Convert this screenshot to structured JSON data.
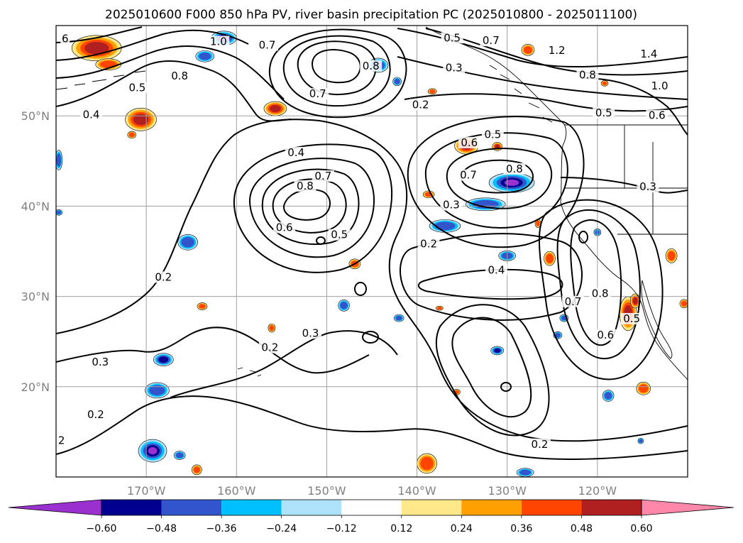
{
  "title": "2025010600 F000 850 hPa PV, river basin precipitation PC (2025010800 - 2025011100)",
  "map": {
    "lon_range": [
      -180,
      -110
    ],
    "lat_range": [
      10,
      60
    ],
    "lon_ticks": [
      -170,
      -160,
      -150,
      -140,
      -130,
      -120
    ],
    "lon_labels": [
      "170°W",
      "160°W",
      "150°W",
      "140°W",
      "130°W",
      "120°W"
    ],
    "lat_ticks": [
      20,
      30,
      40,
      50
    ],
    "lat_labels": [
      "20°N",
      "30°N",
      "40°N",
      "50°N"
    ],
    "grid": true
  },
  "colorbar": {
    "ticks": [
      "−0.60",
      "−0.48",
      "−0.36",
      "−0.24",
      "−0.12",
      "0.12",
      "0.24",
      "0.36",
      "0.48",
      "0.60"
    ],
    "colors": [
      "#9b30d0",
      "#000090",
      "#3355cc",
      "#00bfff",
      "#aee2fb",
      "#ffffff",
      "#ffe88a",
      "#ffa000",
      "#ff4500",
      "#b02020",
      "#ff88aa"
    ],
    "extend": "both"
  },
  "contour_labels": [
    {
      "text": "6",
      "lon": -179,
      "lat": 58.3
    },
    {
      "text": "1.0",
      "lon": -162,
      "lat": 58
    },
    {
      "text": "0.7",
      "lon": -156.6,
      "lat": 57.6
    },
    {
      "text": "0.8",
      "lon": -166.3,
      "lat": 54.2
    },
    {
      "text": "0.5",
      "lon": -171,
      "lat": 52.9
    },
    {
      "text": "0.4",
      "lon": -176.1,
      "lat": 49.9
    },
    {
      "text": "0.7",
      "lon": -151,
      "lat": 52.2
    },
    {
      "text": "0.8",
      "lon": -145.1,
      "lat": 55.3
    },
    {
      "text": "0.5",
      "lon": -136.1,
      "lat": 58.4
    },
    {
      "text": "0.7",
      "lon": -131.8,
      "lat": 58.1
    },
    {
      "text": "0.3",
      "lon": -135.9,
      "lat": 55.1
    },
    {
      "text": "0.2",
      "lon": -139.6,
      "lat": 51
    },
    {
      "text": "1.2",
      "lon": -124.5,
      "lat": 57
    },
    {
      "text": "1.4",
      "lon": -114.3,
      "lat": 56.6
    },
    {
      "text": "0.8",
      "lon": -121.1,
      "lat": 54.3
    },
    {
      "text": "1.0",
      "lon": -113.1,
      "lat": 53.1
    },
    {
      "text": "0.5",
      "lon": -119.3,
      "lat": 50.1
    },
    {
      "text": "0.6",
      "lon": -113.4,
      "lat": 49.8
    },
    {
      "text": "0.5",
      "lon": -131.6,
      "lat": 47.7
    },
    {
      "text": "0.6",
      "lon": -134.2,
      "lat": 46.8
    },
    {
      "text": "0.7",
      "lon": -134.3,
      "lat": 43.2
    },
    {
      "text": "0.8",
      "lon": -129.2,
      "lat": 43.9
    },
    {
      "text": "0.4",
      "lon": -153.4,
      "lat": 45.7
    },
    {
      "text": "0.7",
      "lon": -150.4,
      "lat": 43.1
    },
    {
      "text": "0.8",
      "lon": -152.4,
      "lat": 42
    },
    {
      "text": "0.3",
      "lon": -114.4,
      "lat": 41.9
    },
    {
      "text": "0.3",
      "lon": -136.2,
      "lat": 39.9
    },
    {
      "text": "0.6",
      "lon": -154.7,
      "lat": 37.4
    },
    {
      "text": "0.5",
      "lon": -148.6,
      "lat": 36.6
    },
    {
      "text": "0.2",
      "lon": -138.7,
      "lat": 35.6
    },
    {
      "text": "0.4",
      "lon": -131.2,
      "lat": 32.7
    },
    {
      "text": "0.2",
      "lon": -168.1,
      "lat": 31.9
    },
    {
      "text": "0.7",
      "lon": -122.7,
      "lat": 29.2
    },
    {
      "text": "0.8",
      "lon": -119.7,
      "lat": 30.1
    },
    {
      "text": "0.5",
      "lon": -116.2,
      "lat": 27.3
    },
    {
      "text": "0.6",
      "lon": -119.1,
      "lat": 25.5
    },
    {
      "text": "0.3",
      "lon": -151.8,
      "lat": 25.7
    },
    {
      "text": "0.2",
      "lon": -156.3,
      "lat": 24.1
    },
    {
      "text": "0.3",
      "lon": -175.1,
      "lat": 22.5
    },
    {
      "text": "0.2",
      "lon": -175.6,
      "lat": 16.7
    },
    {
      "text": "2",
      "lon": -179.4,
      "lat": 13.8
    },
    {
      "text": "0.2",
      "lon": -126.4,
      "lat": 13.4
    }
  ],
  "precip_blobs": [
    {
      "lon": -175.5,
      "lat": 57.5,
      "rx": 35,
      "ry": 18,
      "value": 0.5
    },
    {
      "lon": -174.2,
      "lat": 55.7,
      "rx": 18,
      "ry": 8,
      "value": 0.36
    },
    {
      "lon": -170.6,
      "lat": 49.6,
      "rx": 22,
      "ry": 16,
      "value": 0.5
    },
    {
      "lon": -171.6,
      "lat": 47.9,
      "rx": 6,
      "ry": 5,
      "value": 0.36
    },
    {
      "lon": -161.4,
      "lat": 58.6,
      "rx": 18,
      "ry": 10,
      "value": -0.6
    },
    {
      "lon": -163.5,
      "lat": 56.6,
      "rx": 13,
      "ry": 8,
      "value": -0.36
    },
    {
      "lon": -155.7,
      "lat": 50.8,
      "rx": 16,
      "ry": 10,
      "value": 0.5
    },
    {
      "lon": -144.3,
      "lat": 55.6,
      "rx": 14,
      "ry": 10,
      "value": -0.36
    },
    {
      "lon": -142.2,
      "lat": 53.8,
      "rx": 6,
      "ry": 6,
      "value": -0.36
    },
    {
      "lon": -138.3,
      "lat": 52.7,
      "rx": 6,
      "ry": 4,
      "value": 0.36
    },
    {
      "lon": -134.5,
      "lat": 46.7,
      "rx": 17,
      "ry": 12,
      "value": 0.5
    },
    {
      "lon": -131.1,
      "lat": 46.6,
      "rx": 7,
      "ry": 6,
      "value": 0.5
    },
    {
      "lon": -129.5,
      "lat": 42.6,
      "rx": 32,
      "ry": 14,
      "value": -0.6
    },
    {
      "lon": -132.4,
      "lat": 40.2,
      "rx": 28,
      "ry": 9,
      "value": -0.36
    },
    {
      "lon": -136.9,
      "lat": 37.8,
      "rx": 22,
      "ry": 9,
      "value": -0.36
    },
    {
      "lon": -138.7,
      "lat": 41.3,
      "rx": 8,
      "ry": 5,
      "value": 0.36
    },
    {
      "lon": -127.7,
      "lat": 57.3,
      "rx": 9,
      "ry": 8,
      "value": 0.36
    },
    {
      "lon": -119.2,
      "lat": 53.6,
      "rx": 5,
      "ry": 4,
      "value": 0.36
    },
    {
      "lon": -126.6,
      "lat": 38.1,
      "rx": 4,
      "ry": 6,
      "value": 0.36
    },
    {
      "lon": -125.3,
      "lat": 34.2,
      "rx": 8,
      "ry": 10,
      "value": 0.36
    },
    {
      "lon": -130,
      "lat": 34.5,
      "rx": 12,
      "ry": 7,
      "value": -0.36
    },
    {
      "lon": -123.7,
      "lat": 27.6,
      "rx": 6,
      "ry": 5,
      "value": -0.36
    },
    {
      "lon": -120,
      "lat": 37.1,
      "rx": 5,
      "ry": 5,
      "value": -0.36
    },
    {
      "lon": -116.6,
      "lat": 28.1,
      "rx": 12,
      "ry": 24,
      "value": 0.5
    },
    {
      "lon": -115.8,
      "lat": 29.5,
      "rx": 7,
      "ry": 10,
      "value": 0.5
    },
    {
      "lon": -111.8,
      "lat": 34.5,
      "rx": 8,
      "ry": 10,
      "value": 0.36
    },
    {
      "lon": -110.4,
      "lat": 29.2,
      "rx": 6,
      "ry": 6,
      "value": 0.36
    },
    {
      "lon": -114.9,
      "lat": 19.8,
      "rx": 10,
      "ry": 9,
      "value": 0.36
    },
    {
      "lon": -118.8,
      "lat": 19,
      "rx": 8,
      "ry": 8,
      "value": -0.36
    },
    {
      "lon": -115.2,
      "lat": 14,
      "rx": 4,
      "ry": 4,
      "value": -0.36
    },
    {
      "lon": -165.4,
      "lat": 36,
      "rx": 14,
      "ry": 11,
      "value": -0.36
    },
    {
      "lon": -168.1,
      "lat": 23,
      "rx": 14,
      "ry": 9,
      "value": -0.48
    },
    {
      "lon": -168.8,
      "lat": 19.6,
      "rx": 17,
      "ry": 11,
      "value": -0.36
    },
    {
      "lon": -169.3,
      "lat": 12.9,
      "rx": 20,
      "ry": 16,
      "value": -0.6
    },
    {
      "lon": -166.3,
      "lat": 12.4,
      "rx": 8,
      "ry": 6,
      "value": -0.36
    },
    {
      "lon": -164.4,
      "lat": 10.8,
      "rx": 7,
      "ry": 7,
      "value": 0.36
    },
    {
      "lon": -163.8,
      "lat": 28.9,
      "rx": 7,
      "ry": 5,
      "value": 0.36
    },
    {
      "lon": -156.1,
      "lat": 26.5,
      "rx": 5,
      "ry": 6,
      "value": 0.36
    },
    {
      "lon": -146.9,
      "lat": 33.6,
      "rx": 8,
      "ry": 7,
      "value": 0.36
    },
    {
      "lon": -148.1,
      "lat": 29,
      "rx": 8,
      "ry": 8,
      "value": -0.36
    },
    {
      "lon": -142,
      "lat": 27.6,
      "rx": 7,
      "ry": 5,
      "value": -0.36
    },
    {
      "lon": -131.1,
      "lat": 24,
      "rx": 9,
      "ry": 6,
      "value": -0.48
    },
    {
      "lon": -135.6,
      "lat": 19.4,
      "rx": 5,
      "ry": 4,
      "value": 0.36
    },
    {
      "lon": -138.9,
      "lat": 11.5,
      "rx": 14,
      "ry": 14,
      "value": 0.36
    },
    {
      "lon": -128,
      "lat": 10.5,
      "rx": 12,
      "ry": 6,
      "value": -0.36
    },
    {
      "lon": -179.7,
      "lat": 45.1,
      "rx": 5,
      "ry": 14,
      "value": -0.36
    },
    {
      "lon": -179.7,
      "lat": 39.3,
      "rx": 5,
      "ry": 4,
      "value": -0.36
    },
    {
      "lon": -124.4,
      "lat": 25.7,
      "rx": 6,
      "ry": 5,
      "value": -0.36
    },
    {
      "lon": -137.5,
      "lat": 28.7,
      "rx": 5,
      "ry": 3,
      "value": 0.36
    }
  ]
}
